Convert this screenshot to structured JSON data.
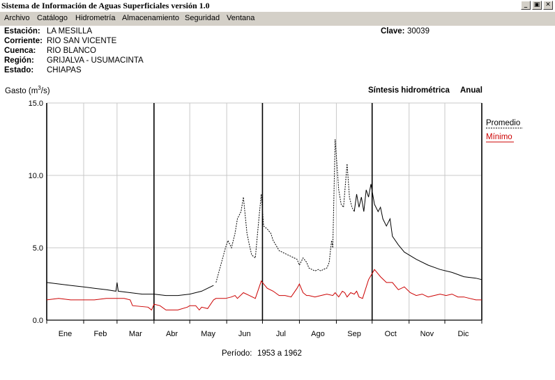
{
  "window": {
    "title": "Sistema de Información de Aguas Superficiales  versión 1.0",
    "minimize_glyph": "_",
    "restore_glyph": "▣",
    "close_glyph": "✕"
  },
  "menu": [
    "Archivo",
    "Catálogo",
    "Hidrometría",
    "Almacenamiento",
    "Seguridad",
    "Ventana"
  ],
  "station": {
    "estacion_label": "Estación:",
    "estacion": "LA MESILLA",
    "corriente_label": "Corriente:",
    "corriente": "RIO SAN VICENTE",
    "cuenca_label": "Cuenca:",
    "cuenca": "RIO BLANCO",
    "region_label": "Región:",
    "region": "GRIJALVA - USUMACINTA",
    "estado_label": "Estado:",
    "estado": "CHIAPAS",
    "clave_label": "Clave:",
    "clave": "30039"
  },
  "header": {
    "synthesis": "Síntesis hidrométrica",
    "mode": "Anual"
  },
  "colors": {
    "promedio": "#000000",
    "minimo": "#cc0000",
    "grid": "#c8c8c8"
  },
  "chart_data": {
    "type": "line",
    "ylabel_pre": "Gasto (m",
    "ylabel_sup": "3",
    "ylabel_post": "/s)",
    "ylim": [
      0,
      15
    ],
    "yticks": [
      "0.0",
      "5.0",
      "10.0",
      "15.0"
    ],
    "xlim": [
      0,
      365
    ],
    "categories": [
      "Ene",
      "Feb",
      "Mar",
      "Abr",
      "May",
      "Jun",
      "Jul",
      "Ago",
      "Sep",
      "Oct",
      "Nov",
      "Dic"
    ],
    "period_label": "Período:",
    "period": "1953 a 1962",
    "grid": true,
    "legend_position": "right",
    "series": [
      {
        "name": "Promedio",
        "style": "solid-dashed",
        "dashed_range": [
          141,
          258
        ],
        "x": [
          0,
          10,
          20,
          31,
          40,
          50,
          58,
          59,
          60,
          70,
          80,
          90,
          100,
          110,
          120,
          125,
          130,
          135,
          140,
          142,
          145,
          150,
          152,
          155,
          158,
          160,
          163,
          165,
          168,
          170,
          172,
          175,
          178,
          180,
          182,
          185,
          188,
          190,
          195,
          200,
          205,
          210,
          212,
          215,
          218,
          220,
          225,
          228,
          230,
          232,
          235,
          237,
          238,
          239,
          240,
          242,
          245,
          247,
          249,
          250,
          252,
          254,
          256,
          258,
          260,
          262,
          264,
          266,
          268,
          270,
          272,
          275,
          278,
          280,
          282,
          285,
          288,
          290,
          295,
          300,
          310,
          320,
          330,
          340,
          350,
          360,
          365
        ],
        "y": [
          2.6,
          2.5,
          2.4,
          2.3,
          2.2,
          2.1,
          2.0,
          2.6,
          2.0,
          1.9,
          1.8,
          1.8,
          1.7,
          1.7,
          1.8,
          1.9,
          2.0,
          2.2,
          2.4,
          2.6,
          3.5,
          5.0,
          5.5,
          5.0,
          6.0,
          7.0,
          7.5,
          8.5,
          6.0,
          5.2,
          4.5,
          4.3,
          7.0,
          8.7,
          6.5,
          6.3,
          6.0,
          5.5,
          4.8,
          4.6,
          4.4,
          4.2,
          3.8,
          4.3,
          4.0,
          3.6,
          3.4,
          3.5,
          3.4,
          3.5,
          3.6,
          4.0,
          4.8,
          5.5,
          5.0,
          12.5,
          9.0,
          8.0,
          7.8,
          8.8,
          10.8,
          8.5,
          7.8,
          7.5,
          8.7,
          7.8,
          8.5,
          7.5,
          9.0,
          8.5,
          9.4,
          8.0,
          7.5,
          7.8,
          7.0,
          6.5,
          7.0,
          5.8,
          5.2,
          4.7,
          4.2,
          3.8,
          3.5,
          3.3,
          3.0,
          2.9,
          2.8
        ]
      },
      {
        "name": "Mínimo",
        "style": "solid",
        "x": [
          0,
          10,
          20,
          31,
          40,
          50,
          59,
          65,
          70,
          72,
          85,
          88,
          90,
          95,
          100,
          110,
          118,
          120,
          125,
          128,
          130,
          135,
          140,
          142,
          145,
          150,
          155,
          158,
          160,
          165,
          170,
          175,
          180,
          185,
          190,
          195,
          200,
          205,
          210,
          212,
          215,
          218,
          220,
          225,
          230,
          235,
          240,
          242,
          245,
          248,
          250,
          252,
          255,
          258,
          260,
          262,
          265,
          270,
          275,
          280,
          285,
          290,
          295,
          300,
          305,
          310,
          315,
          320,
          325,
          330,
          335,
          340,
          345,
          350,
          355,
          360,
          365
        ],
        "y": [
          1.4,
          1.5,
          1.4,
          1.4,
          1.4,
          1.5,
          1.5,
          1.5,
          1.4,
          1.0,
          0.9,
          0.7,
          1.1,
          1.0,
          0.7,
          0.7,
          0.9,
          1.0,
          1.0,
          0.7,
          0.9,
          0.8,
          1.4,
          1.5,
          1.5,
          1.5,
          1.6,
          1.7,
          1.5,
          1.9,
          1.7,
          1.5,
          2.7,
          2.2,
          2.0,
          1.7,
          1.7,
          1.6,
          2.2,
          2.5,
          1.9,
          1.7,
          1.7,
          1.6,
          1.7,
          1.8,
          1.7,
          1.9,
          1.6,
          2.0,
          1.9,
          1.6,
          1.9,
          1.8,
          2.0,
          1.6,
          1.5,
          2.8,
          3.5,
          3.0,
          2.6,
          2.6,
          2.1,
          2.3,
          1.9,
          1.7,
          1.8,
          1.6,
          1.7,
          1.8,
          1.7,
          1.8,
          1.6,
          1.6,
          1.5,
          1.4,
          1.4
        ]
      }
    ]
  }
}
